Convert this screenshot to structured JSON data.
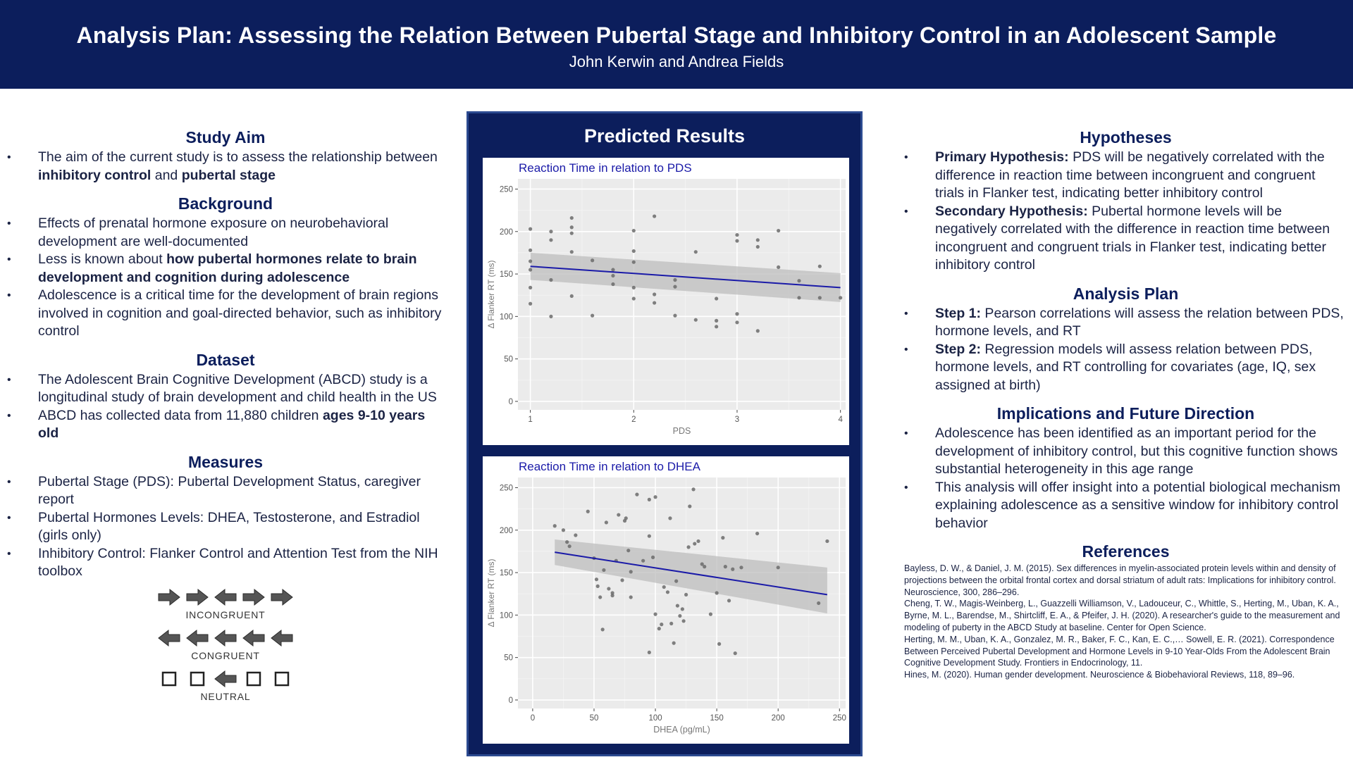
{
  "header": {
    "title": "Analysis Plan: Assessing the Relation Between Pubertal Stage and Inhibitory Control in an Adolescent Sample",
    "authors": "John Kerwin and Andrea Fields"
  },
  "study_aim": {
    "heading": "Study Aim",
    "item1": {
      "t1": "The aim of the current study is to assess the relationship between ",
      "b1": "inhibitory control",
      "t2": " and ",
      "b2": "pubertal stage"
    }
  },
  "background": {
    "heading": "Background",
    "item1": "Effects of prenatal hormone exposure on neurobehavioral development are well-documented",
    "item2": {
      "t1": "Less is known about ",
      "b1": "how pubertal hormones relate to brain development and cognition during adolescence"
    },
    "item3": "Adolescence is a critical time for the development of brain regions involved in cognition and goal-directed behavior, such as inhibitory control"
  },
  "dataset": {
    "heading": "Dataset",
    "item1": "The Adolescent Brain Cognitive Development (ABCD) study is a longitudinal study of brain development and child health in the US",
    "item2": {
      "t1": "ABCD has collected data from 11,880 children ",
      "b1": "ages 9-10 years old"
    }
  },
  "measures": {
    "heading": "Measures",
    "item1": "Pubertal Stage (PDS): Pubertal Development Status, caregiver report",
    "item2": "Pubertal Hormones Levels: DHEA, Testosterone, and Estradiol (girls only)",
    "item3": "Inhibitory Control: Flanker Control and Attention Test from the NIH toolbox"
  },
  "flanker": {
    "incongruent_label": "INCONGRUENT",
    "congruent_label": "CONGRUENT",
    "neutral_label": "NEUTRAL",
    "incongruent": [
      "right",
      "right",
      "left",
      "right",
      "right"
    ],
    "congruent": [
      "left",
      "left",
      "left",
      "left",
      "left"
    ],
    "neutral": [
      "box",
      "box",
      "left",
      "box",
      "box"
    ],
    "icon_color": "#555555"
  },
  "predicted": {
    "heading": "Predicted Results",
    "accent_color": "#0c1e5c",
    "line_color": "#1a1aa8"
  },
  "chart_data": [
    {
      "type": "scatter",
      "title": "Reaction Time in relation to PDS",
      "xlabel": "PDS",
      "ylabel": "Δ Flanker RT (ms)",
      "xlim": [
        0.88,
        4.05
      ],
      "ylim": [
        -10,
        262
      ],
      "xticks": [
        1,
        2,
        3,
        4
      ],
      "yticks": [
        0,
        50,
        100,
        150,
        200,
        250
      ],
      "grid": true,
      "points": [
        [
          1.0,
          203
        ],
        [
          1.0,
          178
        ],
        [
          1.0,
          165
        ],
        [
          1.0,
          155
        ],
        [
          1.0,
          134
        ],
        [
          1.0,
          115
        ],
        [
          1.2,
          200
        ],
        [
          1.2,
          190
        ],
        [
          1.2,
          143
        ],
        [
          1.2,
          100
        ],
        [
          1.4,
          216
        ],
        [
          1.4,
          205
        ],
        [
          1.4,
          198
        ],
        [
          1.4,
          176
        ],
        [
          1.4,
          124
        ],
        [
          1.6,
          166
        ],
        [
          1.6,
          101
        ],
        [
          1.8,
          155
        ],
        [
          1.8,
          148
        ],
        [
          1.8,
          138
        ],
        [
          2.0,
          201
        ],
        [
          2.0,
          177
        ],
        [
          2.0,
          164
        ],
        [
          2.0,
          134
        ],
        [
          2.0,
          121
        ],
        [
          2.2,
          218
        ],
        [
          2.2,
          126
        ],
        [
          2.2,
          116
        ],
        [
          2.4,
          143
        ],
        [
          2.4,
          135
        ],
        [
          2.4,
          101
        ],
        [
          2.6,
          176
        ],
        [
          2.6,
          96
        ],
        [
          2.8,
          121
        ],
        [
          2.8,
          95
        ],
        [
          2.8,
          88
        ],
        [
          3.0,
          196
        ],
        [
          3.0,
          189
        ],
        [
          3.0,
          103
        ],
        [
          3.0,
          93
        ],
        [
          3.2,
          190
        ],
        [
          3.2,
          182
        ],
        [
          3.2,
          83
        ],
        [
          3.4,
          201
        ],
        [
          3.4,
          158
        ],
        [
          3.6,
          142
        ],
        [
          3.6,
          122
        ],
        [
          3.8,
          159
        ],
        [
          3.8,
          122
        ],
        [
          4.0,
          122
        ]
      ],
      "fit": {
        "x": [
          1,
          4
        ],
        "y": [
          159,
          134
        ]
      },
      "ci": {
        "lower": [
          143,
          117
        ],
        "upper": [
          175,
          151
        ]
      }
    },
    {
      "type": "scatter",
      "title": "Reaction Time in relation to DHEA",
      "xlabel": "DHEA (pg/mL)",
      "ylabel": "Δ Flanker RT (ms)",
      "xlim": [
        -12,
        255
      ],
      "ylim": [
        -10,
        262
      ],
      "xticks": [
        0,
        50,
        100,
        150,
        200,
        250
      ],
      "yticks": [
        0,
        50,
        100,
        150,
        200,
        250
      ],
      "grid": true,
      "points": [
        [
          18,
          205
        ],
        [
          25,
          200
        ],
        [
          28,
          186
        ],
        [
          30,
          181
        ],
        [
          35,
          194
        ],
        [
          45,
          222
        ],
        [
          50,
          167
        ],
        [
          52,
          142
        ],
        [
          53,
          134
        ],
        [
          55,
          121
        ],
        [
          57,
          83
        ],
        [
          58,
          153
        ],
        [
          60,
          209
        ],
        [
          62,
          131
        ],
        [
          65,
          123
        ],
        [
          65,
          126
        ],
        [
          68,
          164
        ],
        [
          70,
          218
        ],
        [
          73,
          141
        ],
        [
          75,
          211
        ],
        [
          76,
          214
        ],
        [
          78,
          176
        ],
        [
          80,
          151
        ],
        [
          80,
          121
        ],
        [
          85,
          242
        ],
        [
          90,
          164
        ],
        [
          95,
          193
        ],
        [
          95,
          236
        ],
        [
          95,
          56
        ],
        [
          98,
          168
        ],
        [
          100,
          239
        ],
        [
          100,
          101
        ],
        [
          103,
          84
        ],
        [
          105,
          89
        ],
        [
          107,
          133
        ],
        [
          110,
          127
        ],
        [
          112,
          214
        ],
        [
          113,
          90
        ],
        [
          115,
          67
        ],
        [
          117,
          140
        ],
        [
          118,
          111
        ],
        [
          120,
          99
        ],
        [
          122,
          107
        ],
        [
          123,
          93
        ],
        [
          125,
          124
        ],
        [
          127,
          180
        ],
        [
          128,
          228
        ],
        [
          131,
          248
        ],
        [
          132,
          184
        ],
        [
          135,
          187
        ],
        [
          138,
          160
        ],
        [
          140,
          157
        ],
        [
          145,
          101
        ],
        [
          150,
          126
        ],
        [
          152,
          66
        ],
        [
          155,
          191
        ],
        [
          157,
          157
        ],
        [
          160,
          117
        ],
        [
          163,
          154
        ],
        [
          165,
          55
        ],
        [
          170,
          156
        ],
        [
          183,
          196
        ],
        [
          200,
          156
        ],
        [
          233,
          114
        ],
        [
          240,
          187
        ]
      ],
      "fit": {
        "x": [
          18,
          240
        ],
        "y": [
          174,
          124
        ]
      },
      "ci": {
        "lower": [
          159,
          102
        ],
        "upper": [
          189,
          156
        ]
      }
    }
  ],
  "hypotheses": {
    "heading": "Hypotheses",
    "item1": {
      "b1": "Primary Hypothesis:",
      "t1": " PDS will be negatively correlated with the difference in reaction time between incongruent and congruent trials in Flanker test, indicating better inhibitory control"
    },
    "item2": {
      "b1": "Secondary Hypothesis:",
      "t1": " Pubertal hormone levels will be negatively correlated with the difference in reaction time between incongruent and congruent trials in Flanker test, indicating better inhibitory control"
    }
  },
  "analysis_plan": {
    "heading": "Analysis Plan",
    "item1": {
      "b1": "Step 1:",
      "t1": " Pearson correlations will assess the relation between PDS, hormone levels, and RT"
    },
    "item2": {
      "b1": "Step 2:",
      "t1": " Regression models will assess relation between PDS, hormone levels, and RT controlling for covariates (age, IQ, sex assigned at birth)"
    }
  },
  "implications": {
    "heading": "Implications and Future Direction",
    "item1": "Adolescence has been identified as an important period for the development of inhibitory control, but this cognitive function shows substantial heterogeneity in this age range",
    "item2": "This analysis will offer insight into a potential biological mechanism explaining adolescence as a sensitive window for inhibitory control behavior"
  },
  "references": {
    "heading": "References",
    "ref1": "Bayless, D. W., & Daniel, J. M. (2015). Sex differences in myelin-associated protein levels within and density of projections between the orbital frontal cortex and dorsal striatum of adult rats: Implications for inhibitory control. Neuroscience, 300, 286–296.",
    "ref2": "Cheng, T. W., Magis-Weinberg, L., Guazzelli Williamson, V., Ladouceur, C., Whittle, S., Herting, M., Uban, K. A., Byrne, M. L., Barendse, M., Shirtcliff, E. A., & Pfeifer, J. H. (2020). A researcher's guide to the measurement and modeling of puberty in the ABCD Study at baseline. Center for Open Science.",
    "ref3": "Herting, M. M., Uban, K. A., Gonzalez, M. R., Baker, F. C., Kan, E. C.,… Sowell, E. R. (2021). Correspondence Between Perceived Pubertal Development and Hormone Levels in 9-10 Year-Olds From the Adolescent Brain Cognitive Development Study. Frontiers in Endocrinology, 11.",
    "ref4": "Hines, M. (2020). Human gender development. Neuroscience & Biobehavioral Reviews, 118, 89–96."
  }
}
